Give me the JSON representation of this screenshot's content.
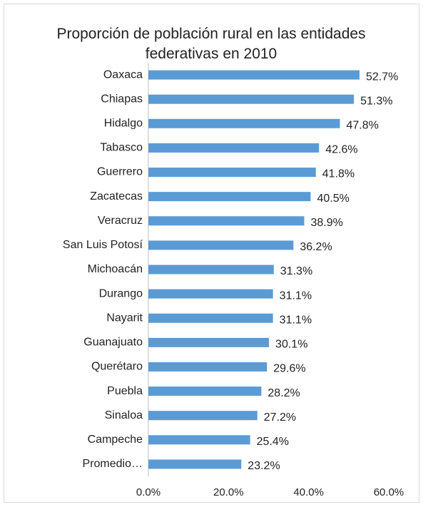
{
  "chart_data": {
    "type": "hbar",
    "title": "Proporción de población rural en las entidades federativas en 2010",
    "categories": [
      "Oaxaca",
      "Chiapas",
      "Hidalgo",
      "Tabasco",
      "Guerrero",
      "Zacatecas",
      "Veracruz",
      "San Luis Potosí",
      "Michoacán",
      "Durango",
      "Nayarit",
      "Guanajuato",
      "Querétaro",
      "Puebla",
      "Sinaloa",
      "Campeche",
      "Promedio…"
    ],
    "values": [
      52.7,
      51.3,
      47.8,
      42.6,
      41.8,
      40.5,
      38.9,
      36.2,
      31.3,
      31.1,
      31.1,
      30.1,
      29.6,
      28.2,
      27.2,
      25.4,
      23.2
    ],
    "value_labels": [
      "52.7%",
      "51.3%",
      "47.8%",
      "42.6%",
      "41.8%",
      "40.5%",
      "38.9%",
      "36.2%",
      "31.3%",
      "31.1%",
      "31.1%",
      "30.1%",
      "29.6%",
      "28.2%",
      "27.2%",
      "25.4%",
      "23.2%"
    ],
    "color": "#5b9bd5",
    "xlim": [
      0,
      60
    ],
    "xticks": [
      {
        "value": 0,
        "label": "0.0%"
      },
      {
        "value": 20,
        "label": "20.0%"
      },
      {
        "value": 40,
        "label": "40.0%"
      },
      {
        "value": 60,
        "label": "60.0%"
      }
    ],
    "grid": false
  }
}
